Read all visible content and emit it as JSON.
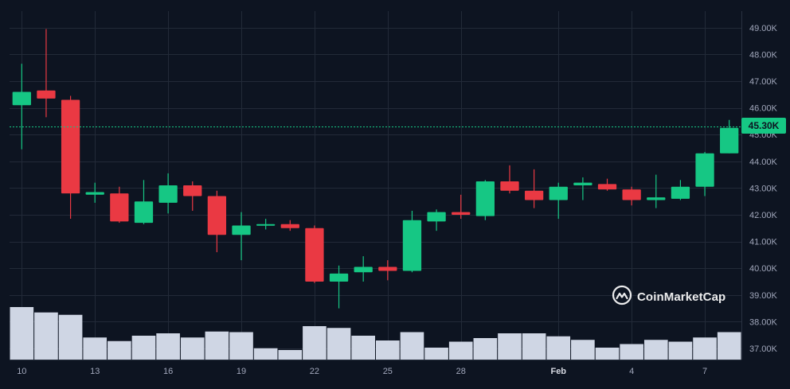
{
  "chart_data": {
    "type": "candlestick",
    "title": "",
    "xlabel": "",
    "ylabel": "",
    "ylim": [
      36500,
      49500
    ],
    "grid": true,
    "current_price": {
      "value": 45300,
      "label": "45.30K"
    },
    "y_ticks": [
      {
        "value": 49000,
        "label": "49.00K"
      },
      {
        "value": 48000,
        "label": "48.00K"
      },
      {
        "value": 47000,
        "label": "47.00K"
      },
      {
        "value": 46000,
        "label": "46.00K"
      },
      {
        "value": 45000,
        "label": "45.00K"
      },
      {
        "value": 44000,
        "label": "44.00K"
      },
      {
        "value": 43000,
        "label": "43.00K"
      },
      {
        "value": 42000,
        "label": "42.00K"
      },
      {
        "value": 41000,
        "label": "41.00K"
      },
      {
        "value": 40000,
        "label": "40.00K"
      },
      {
        "value": 39000,
        "label": "39.00K"
      },
      {
        "value": 38000,
        "label": "38.00K"
      },
      {
        "value": 37000,
        "label": "37.00K"
      }
    ],
    "x_ticks": [
      {
        "index": 0,
        "label": "10",
        "bold": false
      },
      {
        "index": 3,
        "label": "13",
        "bold": false
      },
      {
        "index": 6,
        "label": "16",
        "bold": false
      },
      {
        "index": 9,
        "label": "19",
        "bold": false
      },
      {
        "index": 12,
        "label": "22",
        "bold": false
      },
      {
        "index": 15,
        "label": "25",
        "bold": false
      },
      {
        "index": 18,
        "label": "28",
        "bold": false
      },
      {
        "index": 22,
        "label": "Feb",
        "bold": true
      },
      {
        "index": 25,
        "label": "4",
        "bold": false
      },
      {
        "index": 28,
        "label": "7",
        "bold": false
      }
    ],
    "candles": [
      {
        "open": 46100,
        "high": 47650,
        "low": 44450,
        "close": 46600
      },
      {
        "open": 46650,
        "high": 48950,
        "low": 45650,
        "close": 46350
      },
      {
        "open": 46300,
        "high": 46450,
        "low": 41850,
        "close": 42800
      },
      {
        "open": 42750,
        "high": 43200,
        "low": 42450,
        "close": 42850
      },
      {
        "open": 42800,
        "high": 43050,
        "low": 41700,
        "close": 41750
      },
      {
        "open": 41700,
        "high": 43300,
        "low": 41650,
        "close": 42500
      },
      {
        "open": 42450,
        "high": 43550,
        "low": 42050,
        "close": 43100
      },
      {
        "open": 43100,
        "high": 43250,
        "low": 42150,
        "close": 42700
      },
      {
        "open": 42700,
        "high": 42900,
        "low": 40600,
        "close": 41250
      },
      {
        "open": 41250,
        "high": 42100,
        "low": 40300,
        "close": 41600
      },
      {
        "open": 41600,
        "high": 41850,
        "low": 41450,
        "close": 41650
      },
      {
        "open": 41650,
        "high": 41800,
        "low": 41400,
        "close": 41500
      },
      {
        "open": 41500,
        "high": 41600,
        "low": 39450,
        "close": 39500
      },
      {
        "open": 39500,
        "high": 40100,
        "low": 38500,
        "close": 39800
      },
      {
        "open": 39850,
        "high": 40450,
        "low": 39500,
        "close": 40050
      },
      {
        "open": 40050,
        "high": 40300,
        "low": 39550,
        "close": 39900
      },
      {
        "open": 39900,
        "high": 42150,
        "low": 39850,
        "close": 41800
      },
      {
        "open": 41750,
        "high": 42200,
        "low": 41400,
        "close": 42100
      },
      {
        "open": 42100,
        "high": 42750,
        "low": 41850,
        "close": 42000
      },
      {
        "open": 41950,
        "high": 43300,
        "low": 41800,
        "close": 43250
      },
      {
        "open": 43250,
        "high": 43850,
        "low": 42800,
        "close": 42900
      },
      {
        "open": 42900,
        "high": 43700,
        "low": 42250,
        "close": 42550
      },
      {
        "open": 42550,
        "high": 43200,
        "low": 41850,
        "close": 43050
      },
      {
        "open": 43100,
        "high": 43400,
        "low": 42550,
        "close": 43200
      },
      {
        "open": 43150,
        "high": 43350,
        "low": 42900,
        "close": 42950
      },
      {
        "open": 42950,
        "high": 43050,
        "low": 42350,
        "close": 42550
      },
      {
        "open": 42550,
        "high": 43500,
        "low": 42250,
        "close": 42650
      },
      {
        "open": 42600,
        "high": 43300,
        "low": 42550,
        "close": 43050
      },
      {
        "open": 43050,
        "high": 44350,
        "low": 42700,
        "close": 44300
      },
      {
        "open": 44300,
        "high": 45550,
        "low": 44300,
        "close": 45250
      }
    ],
    "volume_relative": [
      0.88,
      0.79,
      0.75,
      0.37,
      0.31,
      0.4,
      0.44,
      0.37,
      0.47,
      0.46,
      0.19,
      0.16,
      0.56,
      0.53,
      0.4,
      0.32,
      0.46,
      0.2,
      0.3,
      0.36,
      0.44,
      0.44,
      0.39,
      0.33,
      0.2,
      0.26,
      0.33,
      0.3,
      0.37,
      0.46
    ],
    "colors": {
      "background": "#0d1421",
      "up": "#16c784",
      "down": "#ea3943",
      "volume": "#cfd6e4",
      "grid": "#222a38",
      "axis_text": "#a1a7bb"
    }
  },
  "watermark": {
    "text": "CoinMarketCap",
    "icon": "coinmarketcap-logo-icon"
  }
}
